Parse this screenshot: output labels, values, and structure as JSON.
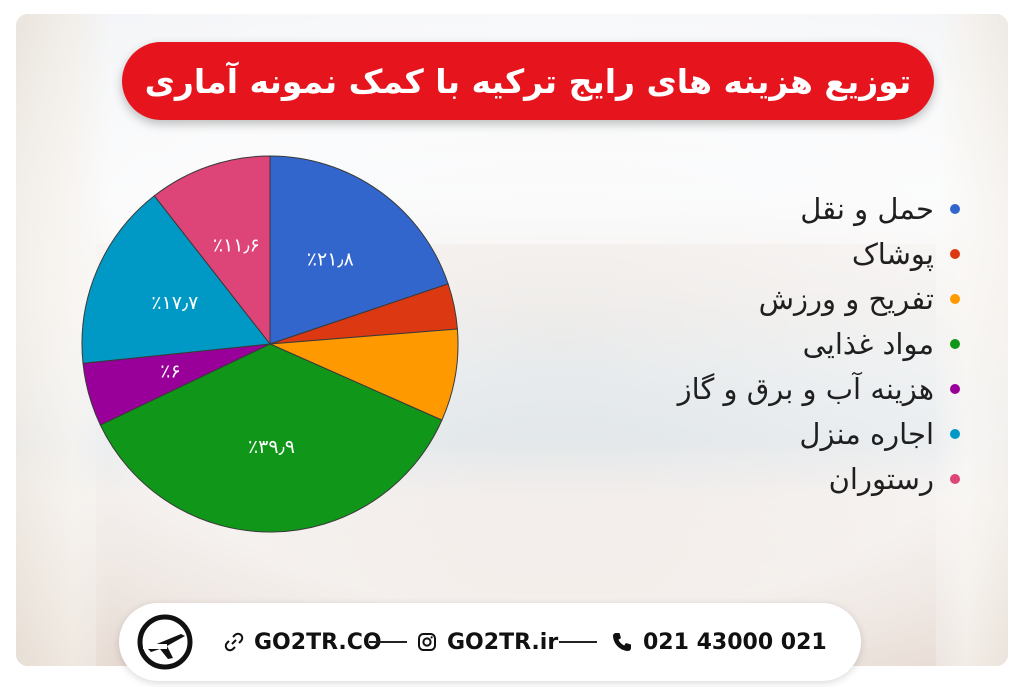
{
  "title": "توزیع هزینه های رایج ترکیه با کمک نمونه آماری",
  "chart_data": {
    "type": "pie",
    "start_angle_deg": 0,
    "direction": "clockwise",
    "slices": [
      {
        "name": "حمل و نقل",
        "value": 21.8,
        "label": "٪۲۱٫۸",
        "color": "#3366cc"
      },
      {
        "name": "پوشاک",
        "value": 4.3,
        "label": "",
        "color": "#dc3912"
      },
      {
        "name": "تفریح و ورزش",
        "value": 8.7,
        "label": "",
        "color": "#ff9900"
      },
      {
        "name": "مواد غذایی",
        "value": 39.9,
        "label": "٪۳۹٫۹",
        "color": "#109618"
      },
      {
        "name": "هزینه آب و برق و گاز",
        "value": 6.0,
        "label": "٪۶",
        "color": "#990099"
      },
      {
        "name": "اجاره منزل",
        "value": 17.7,
        "label": "٪۱۷٫۷",
        "color": "#0099c6"
      },
      {
        "name": "رستوران",
        "value": 11.6,
        "label": "٪۱۱٫۶",
        "color": "#dd4477"
      }
    ]
  },
  "legend": [
    {
      "label": "حمل و نقل",
      "color": "#3366cc"
    },
    {
      "label": "پوشاک",
      "color": "#dc3912"
    },
    {
      "label": "تفریح و ورزش",
      "color": "#ff9900"
    },
    {
      "label": "مواد غذایی",
      "color": "#109618"
    },
    {
      "label": "هزینه آب و برق و گاز",
      "color": "#990099"
    },
    {
      "label": "اجاره منزل",
      "color": "#0099c6"
    },
    {
      "label": "رستوران",
      "color": "#dd4477"
    }
  ],
  "footer": {
    "website": "GO2TR.CO",
    "instagram": "GO2TR.ir",
    "phone": "021 43000 021",
    "icons": [
      "airplane-logo-icon",
      "link-icon",
      "instagram-icon",
      "phone-icon"
    ]
  }
}
